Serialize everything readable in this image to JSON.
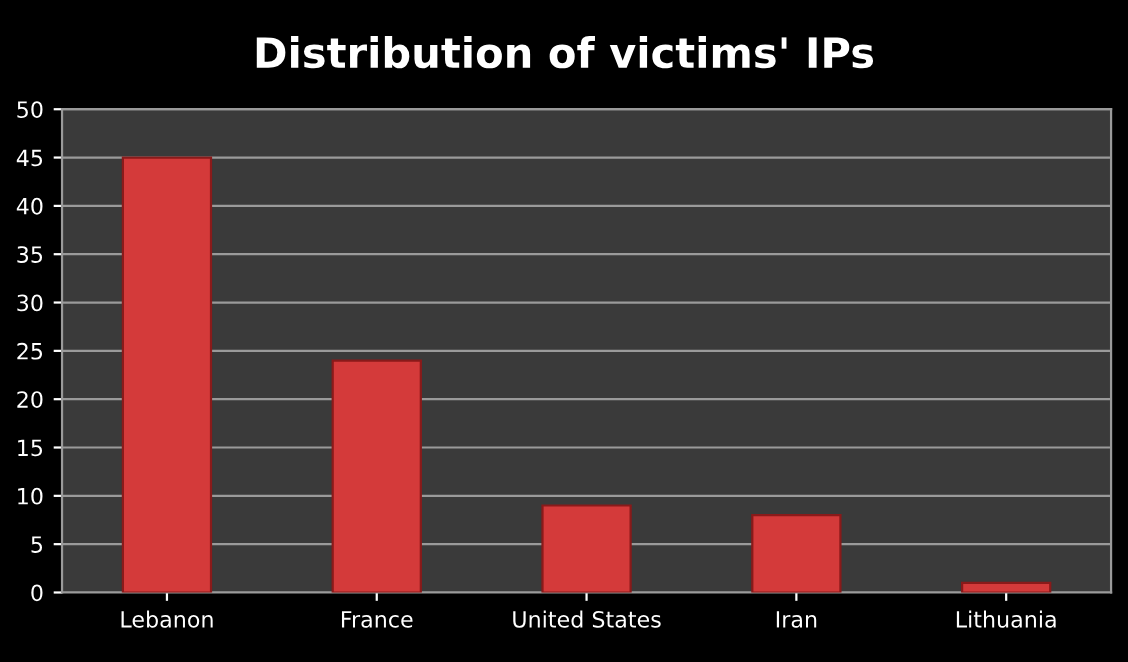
{
  "chart_data": {
    "type": "bar",
    "title": "Distribution of victims' IPs",
    "categories": [
      "Lebanon",
      "France",
      "United States",
      "Iran",
      "Lithuania"
    ],
    "values": [
      45,
      24,
      9,
      8,
      1
    ],
    "color": "#d43a3a",
    "ylim": [
      0,
      50
    ],
    "yticks": [
      0,
      5,
      10,
      15,
      20,
      25,
      30,
      35,
      40,
      45,
      50
    ],
    "grid": "y"
  }
}
